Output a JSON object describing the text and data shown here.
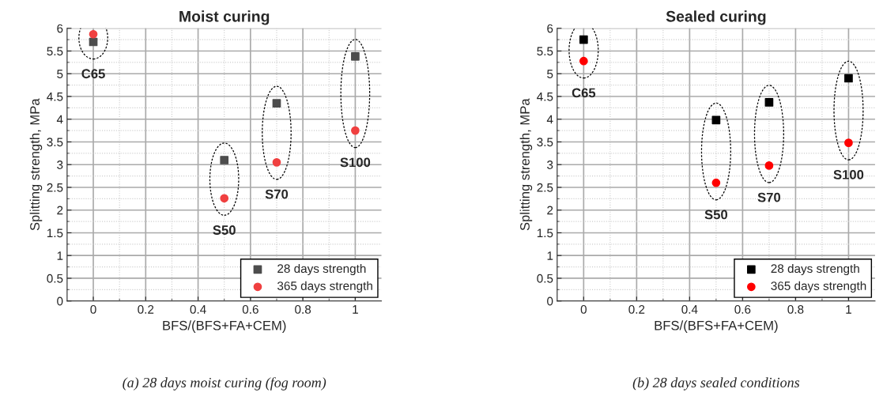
{
  "chart_data": [
    {
      "type": "scatter",
      "title": "Moist curing",
      "xlabel": "BFS/(BFS+FA+CEM)",
      "ylabel": "Splitting strength, MPa",
      "x": [
        0,
        0.5,
        0.7,
        1
      ],
      "series": [
        {
          "name": "28 days strength",
          "color": "#4d4d4d",
          "marker": "square",
          "values": [
            5.7,
            3.1,
            4.35,
            5.38
          ]
        },
        {
          "name": "365 days strength",
          "color": "#f04040",
          "marker": "circle",
          "values": [
            5.87,
            2.26,
            3.05,
            3.75
          ]
        }
      ],
      "xlim": [
        -0.1,
        1.1
      ],
      "ylim": [
        0,
        6
      ],
      "xticks": [
        0,
        {
          "value": 0.1,
          "label": null
        },
        0.2,
        {
          "value": 0.3,
          "label": null
        },
        0.4,
        {
          "value": 0.5,
          "label": null
        },
        0.6,
        {
          "value": 0.7,
          "label": null
        },
        0.8,
        {
          "value": 0.9,
          "label": null
        },
        1
      ],
      "yticks": [
        0,
        {
          "value": 0.25,
          "label": null
        },
        0.5,
        {
          "value": 0.75,
          "label": null
        },
        1,
        {
          "value": 1.25,
          "label": null
        },
        1.5,
        {
          "value": 1.75,
          "label": null
        },
        2,
        {
          "value": 2.25,
          "label": null
        },
        2.5,
        {
          "value": 2.75,
          "label": null
        },
        3,
        {
          "value": 3.25,
          "label": null
        },
        3.5,
        {
          "value": 3.75,
          "label": null
        },
        4,
        {
          "value": 4.25,
          "label": null
        },
        4.5,
        {
          "value": 4.75,
          "label": null
        },
        5,
        {
          "value": 5.25,
          "label": null
        },
        5.5,
        {
          "value": 5.75,
          "label": null
        },
        6
      ],
      "grid": true,
      "legend": "bottom right",
      "annotations": [
        "C65",
        "S50",
        "S70",
        "S100",
        "(a) 28 days moist curing (fog room)"
      ]
    },
    {
      "type": "scatter",
      "title": "Sealed curing",
      "xlabel": "BFS/(BFS+FA+CEM)",
      "ylabel": "Splitting strength, MPa",
      "x": [
        0,
        0.5,
        0.7,
        1
      ],
      "series": [
        {
          "name": "28 days strength",
          "color": "#000000",
          "marker": "square",
          "values": [
            5.75,
            3.98,
            4.37,
            4.9
          ]
        },
        {
          "name": "365 days strength",
          "color": "#ff0000",
          "marker": "circle",
          "values": [
            5.28,
            2.6,
            2.98,
            3.48
          ]
        }
      ],
      "xlim": [
        -0.1,
        1.1
      ],
      "ylim": [
        0,
        6
      ],
      "xticks": [
        0,
        {
          "value": 0.1,
          "label": null
        },
        0.2,
        {
          "value": 0.3,
          "label": null
        },
        0.4,
        {
          "value": 0.5,
          "label": null
        },
        0.6,
        {
          "value": 0.7,
          "label": null
        },
        0.8,
        {
          "value": 0.9,
          "label": null
        },
        1
      ],
      "yticks": [
        0,
        {
          "value": 0.25,
          "label": null
        },
        0.5,
        {
          "value": 0.75,
          "label": null
        },
        1,
        {
          "value": 1.25,
          "label": null
        },
        1.5,
        {
          "value": 1.75,
          "label": null
        },
        2,
        {
          "value": 2.25,
          "label": null
        },
        2.5,
        {
          "value": 2.75,
          "label": null
        },
        3,
        {
          "value": 3.25,
          "label": null
        },
        3.5,
        {
          "value": 3.75,
          "label": null
        },
        4,
        {
          "value": 4.25,
          "label": null
        },
        4.5,
        {
          "value": 4.75,
          "label": null
        },
        5,
        {
          "value": 5.25,
          "label": null
        },
        5.5,
        {
          "value": 5.75,
          "label": null
        },
        6
      ],
      "grid": true,
      "legend": "bottom right",
      "annotations": [
        "C65",
        "S50",
        "S70",
        "S100",
        "(b) 28 days sealed conditions"
      ]
    }
  ]
}
